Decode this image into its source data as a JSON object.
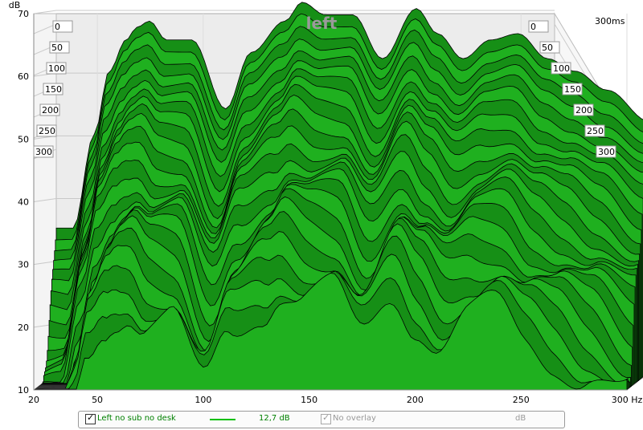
{
  "chart_data": {
    "type": "area",
    "subtype": "waterfall",
    "title": "left",
    "ylabel": "dB",
    "xlabel": "Hz",
    "x_unit": "Hz",
    "time_unit": "ms",
    "x_ticks": [
      "20",
      "50",
      "100",
      "150",
      "200",
      "250",
      "300 Hz"
    ],
    "y_ticks": [
      "10",
      "20",
      "30",
      "40",
      "50",
      "60",
      "70"
    ],
    "y_label_text": "dB",
    "xlim": [
      20,
      300
    ],
    "ylim": [
      10,
      70
    ],
    "time_ticks_left": [
      "0",
      "50",
      "100",
      "150",
      "200",
      "250",
      "300"
    ],
    "time_ticks_right": [
      "0",
      "50",
      "100",
      "150",
      "200",
      "250",
      "300"
    ],
    "time_corner_label": "300ms",
    "time_range_ms": [
      0,
      300
    ],
    "front_slice_peaks": [
      {
        "freq": 28,
        "level": 33
      },
      {
        "freq": 38,
        "level": 48
      },
      {
        "freq": 45,
        "level": 58
      },
      {
        "freq": 53,
        "level": 63
      },
      {
        "freq": 58,
        "level": 65
      },
      {
        "freq": 64,
        "level": 66
      },
      {
        "freq": 72,
        "level": 63
      },
      {
        "freq": 84,
        "level": 63
      },
      {
        "freq": 100,
        "level": 52
      },
      {
        "freq": 112,
        "level": 61
      },
      {
        "freq": 128,
        "level": 66
      },
      {
        "freq": 136,
        "level": 69
      },
      {
        "freq": 147,
        "level": 67
      },
      {
        "freq": 160,
        "level": 67
      },
      {
        "freq": 174,
        "level": 60
      },
      {
        "freq": 190,
        "level": 68
      },
      {
        "freq": 200,
        "level": 64
      },
      {
        "freq": 212,
        "level": 60
      },
      {
        "freq": 225,
        "level": 63
      },
      {
        "freq": 238,
        "level": 64
      },
      {
        "freq": 252,
        "level": 60
      },
      {
        "freq": 265,
        "level": 58
      },
      {
        "freq": 280,
        "level": 55
      },
      {
        "freq": 300,
        "level": 50
      }
    ],
    "colors": {
      "fill": "#1fb01f",
      "fill_dark": "#168f16",
      "outline": "#000000",
      "grid": "#c8c8c8",
      "back": "#ececec"
    }
  },
  "legend": {
    "series_label": "Left no sub no desk",
    "series_checked": true,
    "series_color": "#00c000",
    "series_value": "12,7 dB",
    "overlay_label": "No overlay",
    "overlay_checked": true,
    "overlay_unit": "dB"
  }
}
